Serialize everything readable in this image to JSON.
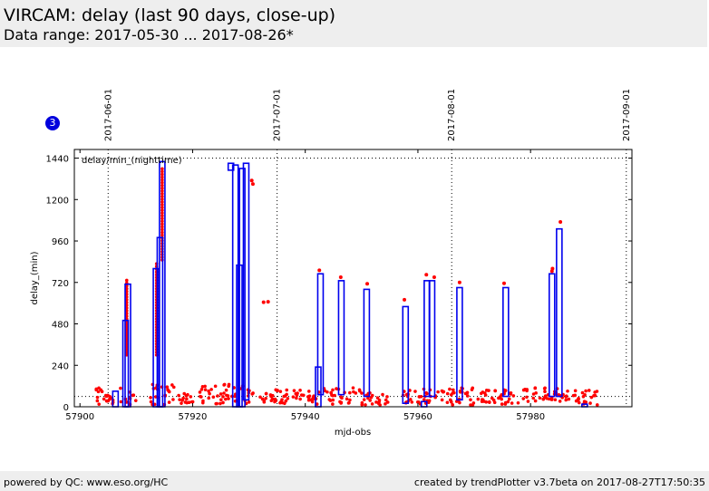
{
  "header": {
    "title": "VIRCAM: delay (last 90 days, close-up)",
    "subtitle": "Data range: 2017-05-30 ... 2017-08-26*"
  },
  "badge": {
    "label": "3"
  },
  "footer": {
    "left": "powered by QC: www.eso.org/HC",
    "right": "created by trendPlotter v3.7beta on 2017-08-27T17:50:35"
  },
  "colors": {
    "points": "#ff0000",
    "boxes": "#0000ee",
    "grid": "#000000"
  },
  "chart_data": {
    "type": "scatter",
    "xlabel": "mjd-obs",
    "ylabel": "delay_(min)",
    "legend": "delay/min_(nighttime)",
    "xlim": [
      57899,
      57998
    ],
    "ylim": [
      0,
      1490
    ],
    "x_ticks": [
      57900,
      57920,
      57940,
      57960,
      57980
    ],
    "y_ticks": [
      0,
      240,
      480,
      720,
      960,
      1200,
      1440
    ],
    "reference_line_y": 60,
    "date_markers": [
      {
        "x": 57905,
        "label": "2017-06-01"
      },
      {
        "x": 57935,
        "label": "2017-07-01"
      },
      {
        "x": 57966,
        "label": "2017-08-01"
      },
      {
        "x": 57997,
        "label": "2017-09-01"
      }
    ],
    "columns": [
      {
        "x": 57906.3,
        "bottom": 0,
        "top": 90
      },
      {
        "x": 57908.1,
        "bottom": 0,
        "top": 500
      },
      {
        "x": 57908.5,
        "bottom": 0,
        "top": 710
      },
      {
        "x": 57913.5,
        "bottom": 0,
        "top": 800
      },
      {
        "x": 57914.2,
        "bottom": 0,
        "top": 980
      },
      {
        "x": 57914.6,
        "bottom": 0,
        "top": 1420
      },
      {
        "x": 57926.8,
        "bottom": 1370,
        "top": 1410
      },
      {
        "x": 57927.6,
        "bottom": 0,
        "top": 1400
      },
      {
        "x": 57928.3,
        "bottom": 0,
        "top": 820
      },
      {
        "x": 57928.8,
        "bottom": 0,
        "top": 1380
      },
      {
        "x": 57929.5,
        "bottom": 40,
        "top": 1410
      },
      {
        "x": 57942.3,
        "bottom": 0,
        "top": 230
      },
      {
        "x": 57942.7,
        "bottom": 70,
        "top": 770
      },
      {
        "x": 57946.4,
        "bottom": 70,
        "top": 730
      },
      {
        "x": 57950.9,
        "bottom": 60,
        "top": 680
      },
      {
        "x": 57957.8,
        "bottom": 20,
        "top": 580
      },
      {
        "x": 57961.1,
        "bottom": 0,
        "top": 30
      },
      {
        "x": 57961.6,
        "bottom": 60,
        "top": 730
      },
      {
        "x": 57962.5,
        "bottom": 60,
        "top": 730
      },
      {
        "x": 57967.4,
        "bottom": 40,
        "top": 690
      },
      {
        "x": 57975.6,
        "bottom": 60,
        "top": 690
      },
      {
        "x": 57983.8,
        "bottom": 60,
        "top": 770
      },
      {
        "x": 57985.1,
        "bottom": 60,
        "top": 1030
      },
      {
        "x": 57989.6,
        "bottom": 0,
        "top": 15
      }
    ],
    "spikes": [
      {
        "x": 57908.3,
        "from": 300,
        "to": 740
      },
      {
        "x": 57913.6,
        "from": 300,
        "to": 840
      },
      {
        "x": 57914.6,
        "from": 850,
        "to": 1390
      }
    ],
    "scatter_points": [
      [
        57930.5,
        1310
      ],
      [
        57930.7,
        1290
      ],
      [
        57932.6,
        605
      ],
      [
        57933.4,
        608
      ],
      [
        57942.5,
        790
      ],
      [
        57946.3,
        750
      ],
      [
        57951.0,
        712
      ],
      [
        57957.6,
        620
      ],
      [
        57961.5,
        765
      ],
      [
        57962.9,
        750
      ],
      [
        57967.4,
        720
      ],
      [
        57975.3,
        715
      ],
      [
        57983.9,
        800
      ],
      [
        57983.8,
        785
      ],
      [
        57985.3,
        1070
      ]
    ],
    "low_clusters": [
      {
        "from": 57902.5,
        "to": 57907.5,
        "min": 10,
        "max": 110
      },
      {
        "from": 57908.0,
        "to": 57910.0,
        "min": 5,
        "max": 100
      },
      {
        "from": 57912.5,
        "to": 57917.0,
        "min": 10,
        "max": 130
      },
      {
        "from": 57917.5,
        "to": 57920.5,
        "min": 20,
        "max": 80
      },
      {
        "from": 57921.0,
        "to": 57931.0,
        "min": 15,
        "max": 130
      },
      {
        "from": 57932.0,
        "to": 57940.0,
        "min": 15,
        "max": 100
      },
      {
        "from": 57940.5,
        "to": 57950.0,
        "min": 15,
        "max": 110
      },
      {
        "from": 57950.0,
        "to": 57955.0,
        "min": 10,
        "max": 80
      },
      {
        "from": 57957.0,
        "to": 57970.0,
        "min": 10,
        "max": 110
      },
      {
        "from": 57970.5,
        "to": 57978.0,
        "min": 15,
        "max": 100
      },
      {
        "from": 57978.5,
        "to": 57987.0,
        "min": 30,
        "max": 110
      },
      {
        "from": 57987.5,
        "to": 57992.0,
        "min": 10,
        "max": 100
      }
    ]
  }
}
